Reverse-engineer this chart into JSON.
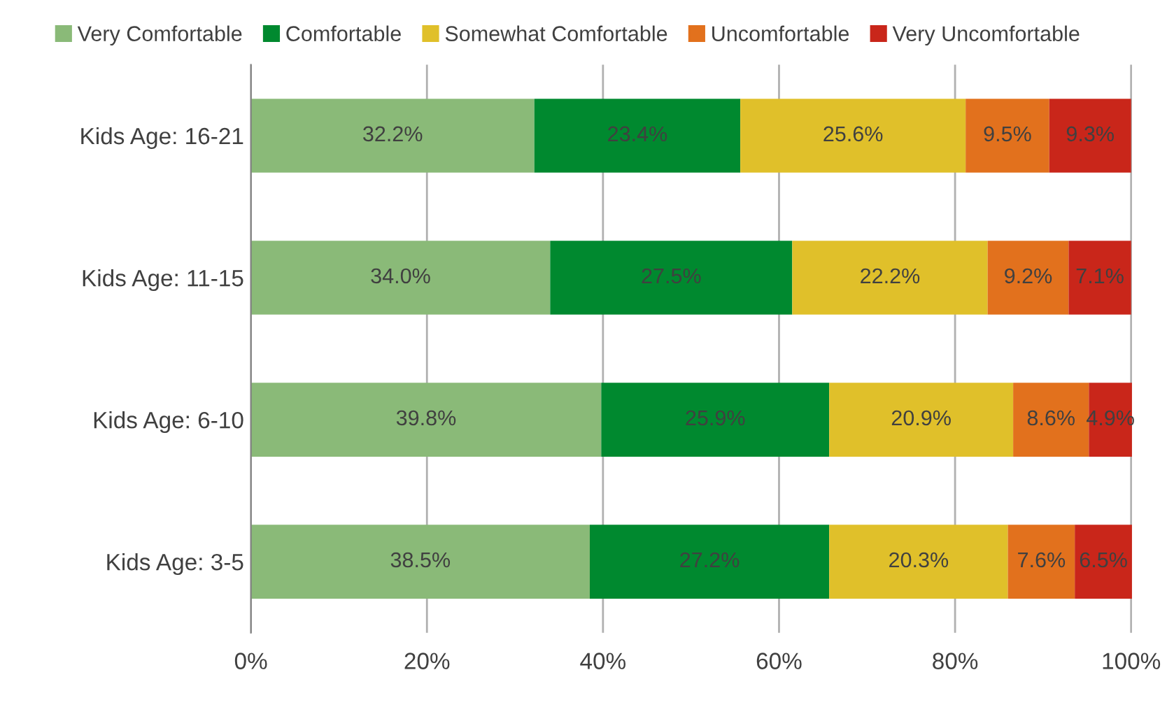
{
  "chart_data": {
    "type": "bar",
    "orientation": "horizontal",
    "stacked": true,
    "categories": [
      "Kids Age: 16-21",
      "Kids Age: 11-15",
      "Kids Age: 6-10",
      "Kids Age: 3-5"
    ],
    "series": [
      {
        "name": "Very Comfortable",
        "color": "#8aba78",
        "values": [
          32.2,
          34.0,
          39.8,
          38.5
        ],
        "value_labels": [
          "32.2%",
          "34.0%",
          "39.8%",
          "38.5%"
        ]
      },
      {
        "name": "Comfortable",
        "color": "#00892f",
        "values": [
          23.4,
          27.5,
          25.9,
          27.2
        ],
        "value_labels": [
          "23.4%",
          "27.5%",
          "25.9%",
          "27.2%"
        ]
      },
      {
        "name": "Somewhat Comfortable",
        "color": "#e0c02a",
        "values": [
          25.6,
          22.2,
          20.9,
          20.3
        ],
        "value_labels": [
          "25.6%",
          "22.2%",
          "20.9%",
          "20.3%"
        ]
      },
      {
        "name": "Uncomfortable",
        "color": "#e2711d",
        "values": [
          9.5,
          9.2,
          8.6,
          7.6
        ],
        "value_labels": [
          "9.5%",
          "9.2%",
          "8.6%",
          "7.6%"
        ]
      },
      {
        "name": "Very Uncomfortable",
        "color": "#c9261a",
        "values": [
          9.3,
          7.1,
          4.9,
          6.5
        ],
        "value_labels": [
          "9.3%",
          "7.1%",
          "4.9%",
          "6.5%"
        ]
      }
    ],
    "xlim": [
      0,
      100.1
    ],
    "xticks": [
      {
        "value": 0,
        "label": "0%"
      },
      {
        "value": 20,
        "label": "20%"
      },
      {
        "value": 40,
        "label": "40%"
      },
      {
        "value": 60,
        "label": "60%"
      },
      {
        "value": 80,
        "label": "80%"
      },
      {
        "value": 100,
        "label": "100%"
      }
    ],
    "grid": "x",
    "legend": "top"
  }
}
